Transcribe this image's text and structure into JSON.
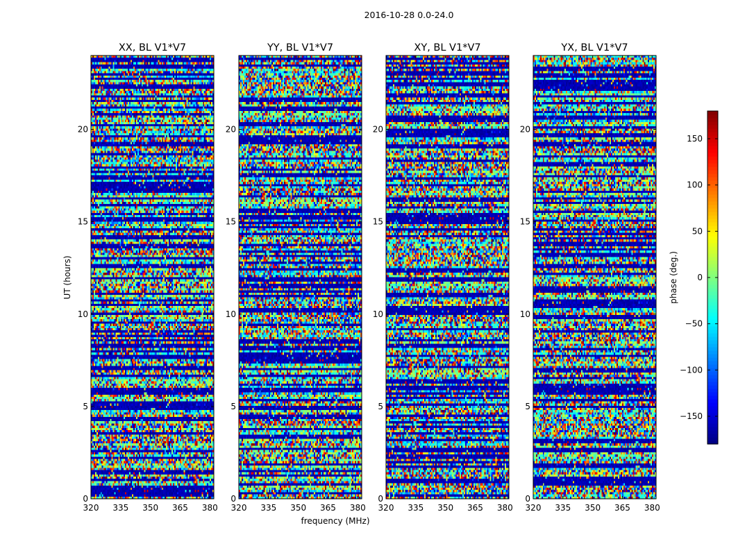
{
  "suptitle": "2016-10-28 0.0-24.0",
  "chart_data": {
    "type": "heatmap",
    "xlabel": "frequency (MHz)",
    "ylabel": "UT (hours)",
    "xlim": [
      320,
      382
    ],
    "ylim": [
      0,
      24
    ],
    "xticks": [
      320,
      335,
      350,
      365,
      380
    ],
    "yticks": [
      0,
      5,
      10,
      15,
      20
    ],
    "panels": [
      {
        "title": "XX, BL V1*V7"
      },
      {
        "title": "YY, BL V1*V7"
      },
      {
        "title": "XY, BL V1*V7"
      },
      {
        "title": "YX, BL V1*V7"
      }
    ],
    "colorbar": {
      "label": "phase (deg.)",
      "colormap": "jet",
      "vmin": -180,
      "vmax": 180,
      "ticks": [
        -150,
        -100,
        -50,
        0,
        50,
        100,
        150
      ],
      "tick_labels": [
        "−150",
        "−100",
        "−50",
        "0",
        "50",
        "100",
        "150"
      ]
    }
  }
}
